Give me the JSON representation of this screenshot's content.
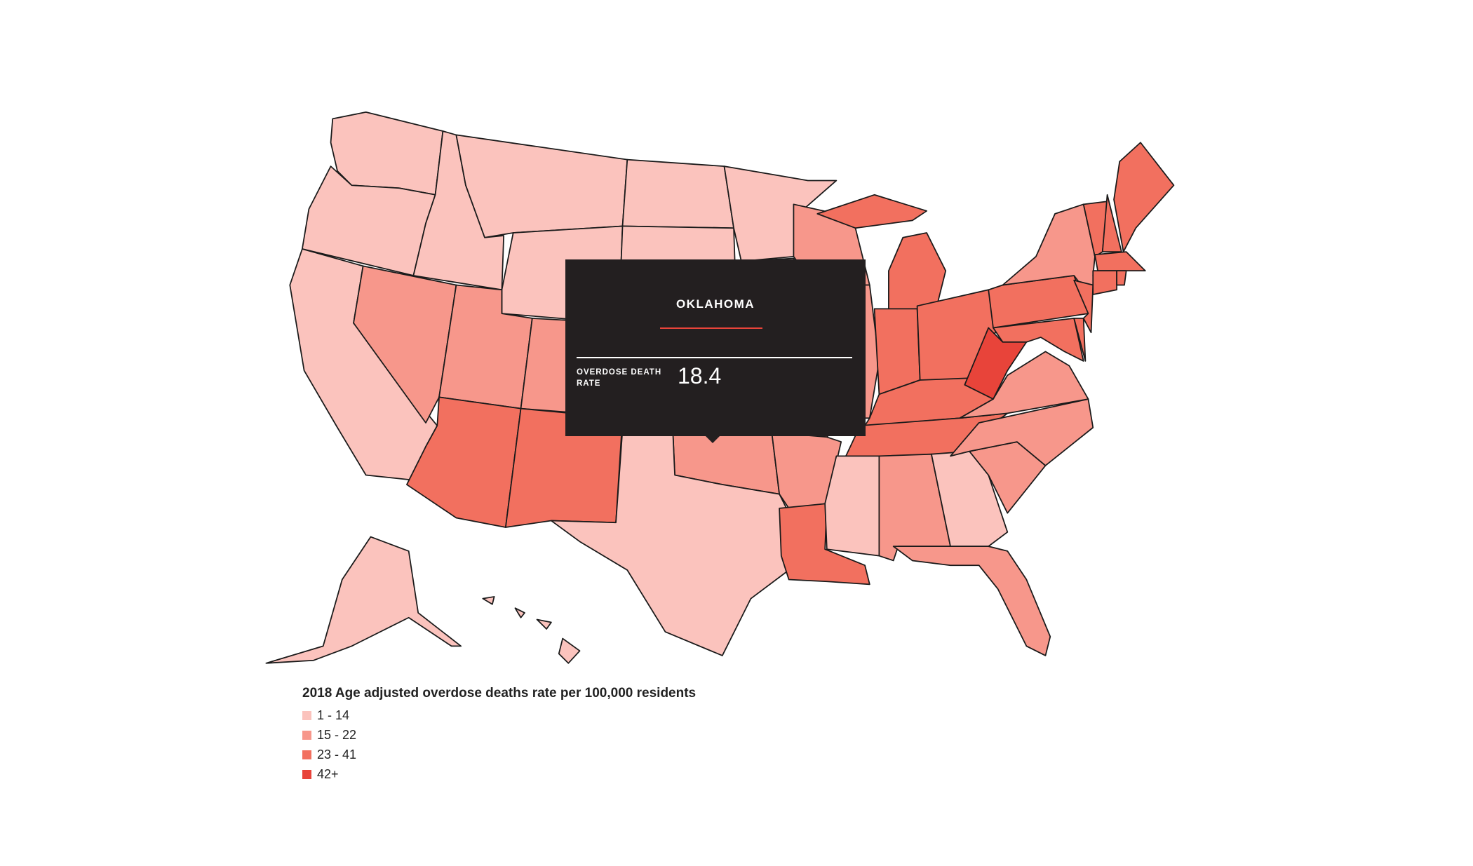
{
  "chart_data": {
    "type": "choropleth",
    "legend": {
      "title": "2018 Age adjusted overdose deaths rate per 100,000 residents",
      "placement": "bottom-left",
      "bins": [
        {
          "label": "1 - 14",
          "color": "#fbc3bd"
        },
        {
          "label": "15 - 22",
          "color": "#f7978b"
        },
        {
          "label": "23 - 41",
          "color": "#f2705f"
        },
        {
          "label": "42+",
          "color": "#e8443a"
        }
      ]
    },
    "state_bins": {
      "WA": 0,
      "OR": 0,
      "CA": 0,
      "ID": 0,
      "MT": 0,
      "WY": 0,
      "ND": 0,
      "SD": 0,
      "NE": 0,
      "KS": 0,
      "TX": 0,
      "MN": 0,
      "IA": 0,
      "MS": 0,
      "GA": 0,
      "AK": 0,
      "HI": 0,
      "NV": 1,
      "UT": 1,
      "CO": 1,
      "OK": 1,
      "AR": 1,
      "WI": 1,
      "IL": 1,
      "AL": 1,
      "SC": 1,
      "NC": 1,
      "VA": 1,
      "NY": 1,
      "FL": 1,
      "AZ": 2,
      "NM": 2,
      "MO": 2,
      "LA": 2,
      "MI": 2,
      "IN": 2,
      "OH": 2,
      "KY": 2,
      "TN": 2,
      "PA": 2,
      "NJ": 2,
      "MD": 2,
      "DE": 2,
      "MA": 2,
      "CT": 2,
      "RI": 2,
      "NH": 2,
      "ME": 2,
      "VT": 2,
      "WV": 3
    },
    "tooltip": {
      "state": "OKLAHOMA",
      "metric_label": "OVERDOSE DEATH RATE",
      "value": "18.4"
    }
  }
}
